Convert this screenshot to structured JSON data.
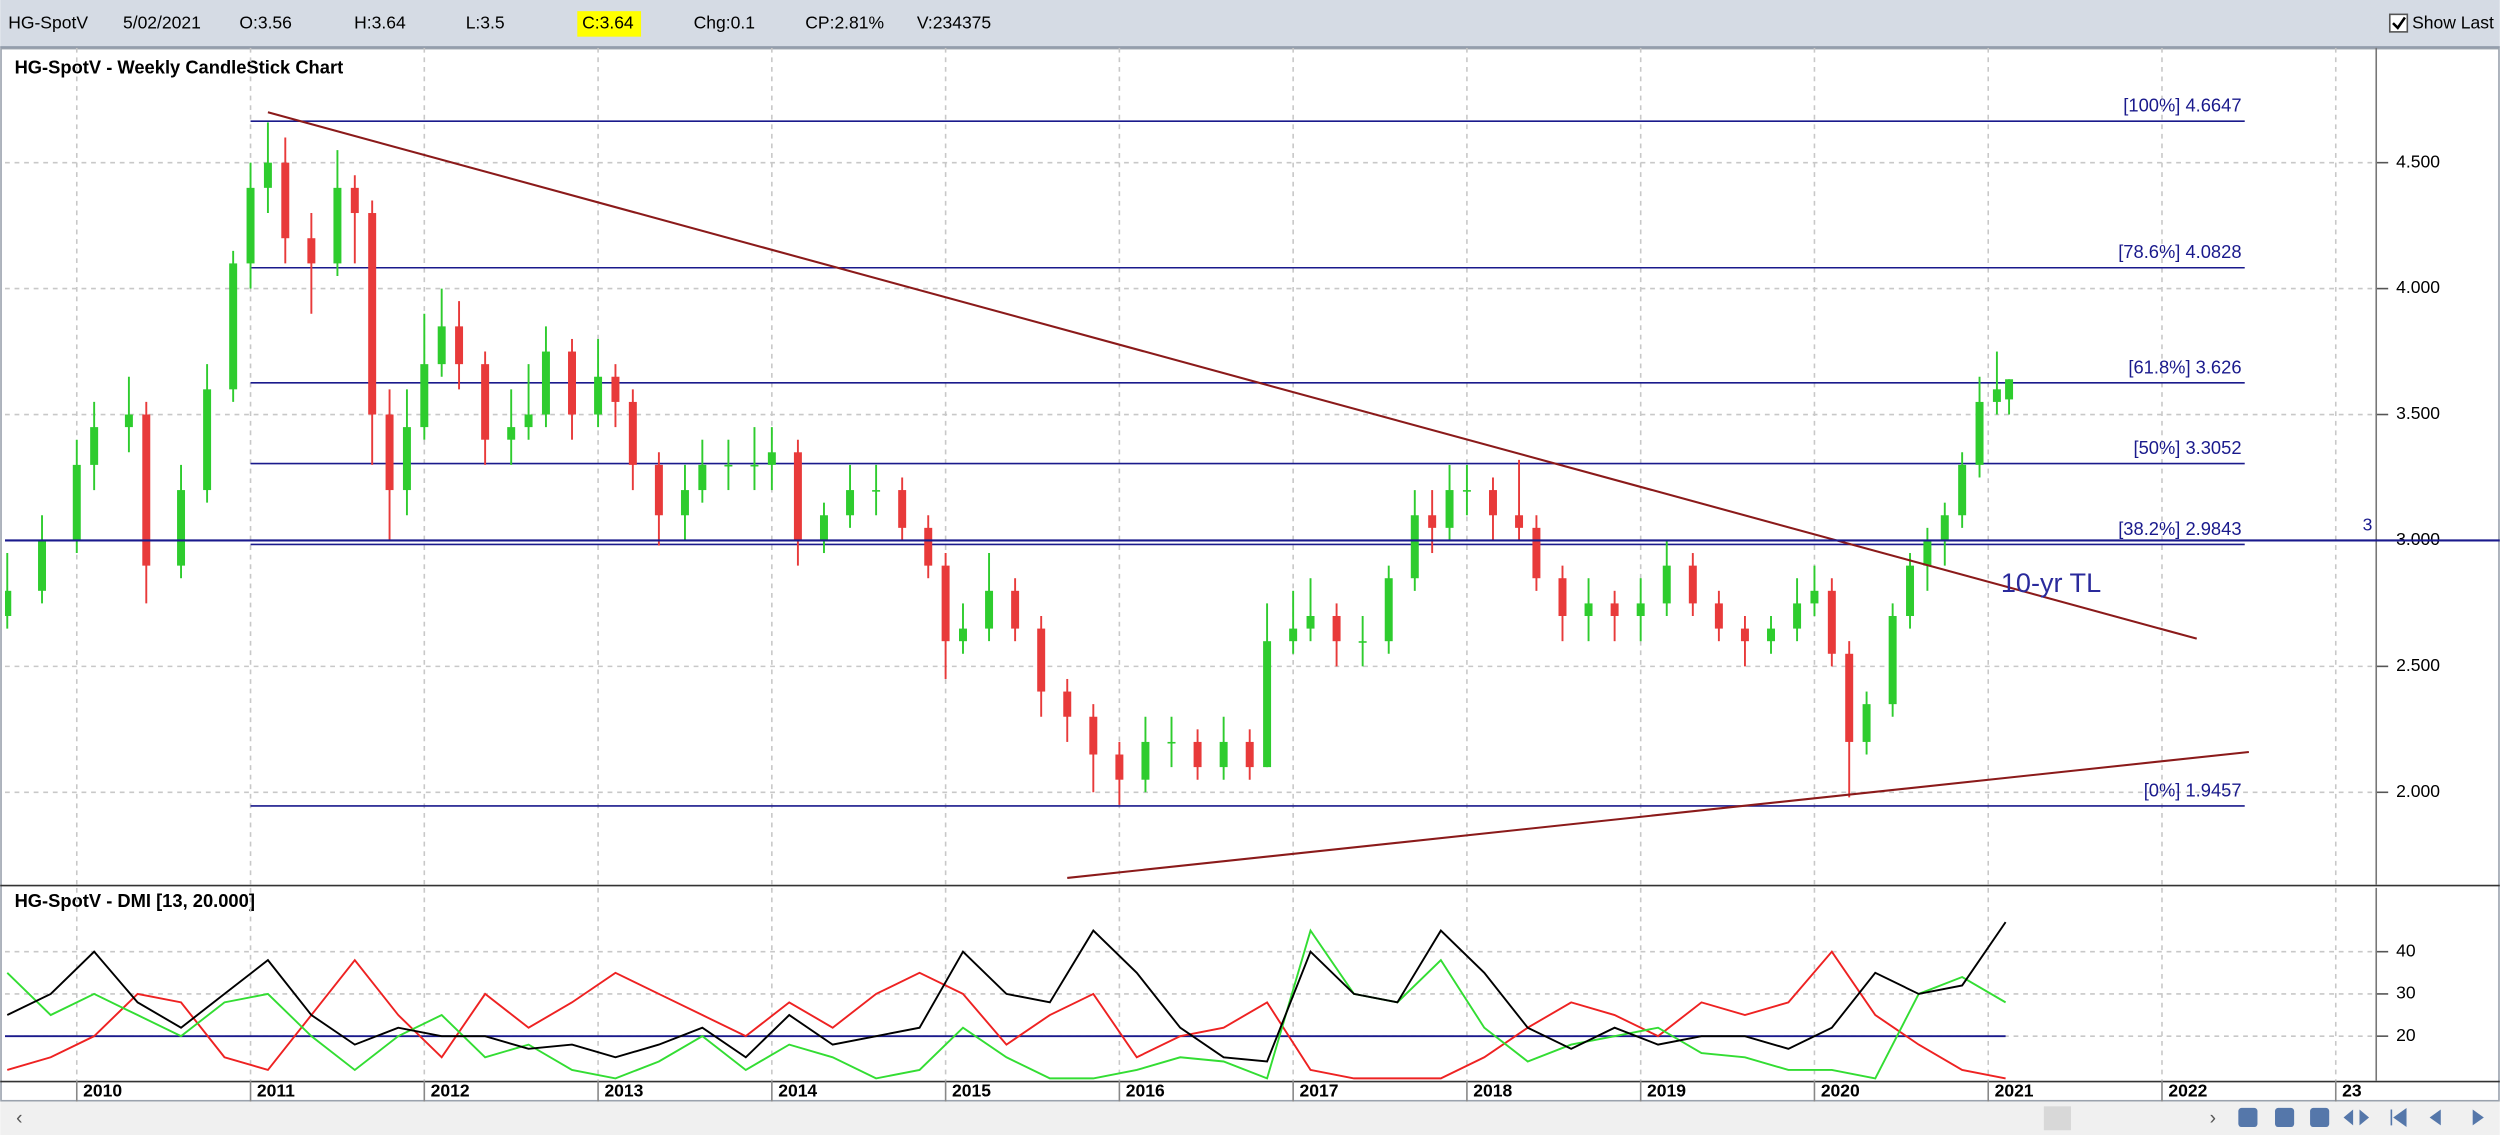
{
  "header": {
    "symbol": "HG-SpotV",
    "date": "5/02/2021",
    "open": "O:3.56",
    "high": "H:3.64",
    "low": "L:3.5",
    "close": "C:3.64",
    "change": "Chg:0.1",
    "change_pct": "CP:2.81%",
    "volume": "V:234375",
    "show_last": "Show Last"
  },
  "chart_data": [
    {
      "type": "candlestick",
      "title": "HG-SpotV - Weekly CandleStick Chart",
      "up_color": "#2ecc2e",
      "down_color": "#e83a3a",
      "x": [
        2009.6,
        2009.8,
        2010.0,
        2010.1,
        2010.3,
        2010.4,
        2010.6,
        2010.75,
        2010.9,
        2011.0,
        2011.1,
        2011.2,
        2011.35,
        2011.5,
        2011.6,
        2011.7,
        2011.8,
        2011.9,
        2012.0,
        2012.1,
        2012.2,
        2012.35,
        2012.5,
        2012.6,
        2012.7,
        2012.85,
        2013.0,
        2013.1,
        2013.2,
        2013.35,
        2013.5,
        2013.6,
        2013.75,
        2013.9,
        2014.0,
        2014.15,
        2014.3,
        2014.45,
        2014.6,
        2014.75,
        2014.9,
        2015.0,
        2015.1,
        2015.25,
        2015.4,
        2015.55,
        2015.7,
        2015.85,
        2016.0,
        2016.15,
        2016.3,
        2016.45,
        2016.6,
        2016.75,
        2016.85,
        2017.0,
        2017.1,
        2017.25,
        2017.4,
        2017.55,
        2017.7,
        2017.8,
        2017.9,
        2018.0,
        2018.15,
        2018.3,
        2018.4,
        2018.55,
        2018.7,
        2018.85,
        2019.0,
        2019.15,
        2019.3,
        2019.45,
        2019.6,
        2019.75,
        2019.9,
        2020.0,
        2020.1,
        2020.2,
        2020.3,
        2020.45,
        2020.55,
        2020.65,
        2020.75,
        2020.85,
        2020.95,
        2021.05,
        2021.12
      ],
      "open": [
        2.7,
        2.8,
        3.0,
        3.3,
        3.45,
        3.5,
        2.9,
        3.2,
        3.6,
        4.1,
        4.4,
        4.5,
        4.2,
        4.1,
        4.4,
        4.3,
        3.5,
        3.2,
        3.45,
        3.7,
        3.85,
        3.7,
        3.4,
        3.45,
        3.5,
        3.75,
        3.5,
        3.65,
        3.55,
        3.3,
        3.1,
        3.2,
        3.3,
        3.3,
        3.3,
        3.35,
        3.0,
        3.1,
        3.2,
        3.2,
        3.05,
        2.9,
        2.6,
        2.65,
        2.8,
        2.65,
        2.4,
        2.3,
        2.15,
        2.05,
        2.2,
        2.2,
        2.1,
        2.2,
        2.1,
        2.6,
        2.65,
        2.7,
        2.6,
        2.6,
        2.85,
        3.1,
        3.05,
        3.2,
        3.2,
        3.1,
        3.05,
        2.85,
        2.7,
        2.75,
        2.7,
        2.75,
        2.9,
        2.75,
        2.65,
        2.6,
        2.65,
        2.75,
        2.8,
        2.55,
        2.2,
        2.35,
        2.7,
        2.9,
        3.0,
        3.1,
        3.3,
        3.55,
        3.56
      ],
      "high": [
        2.95,
        3.1,
        3.4,
        3.55,
        3.65,
        3.55,
        3.3,
        3.7,
        4.15,
        4.5,
        4.66,
        4.6,
        4.3,
        4.55,
        4.45,
        4.35,
        3.6,
        3.6,
        3.9,
        4.0,
        3.95,
        3.75,
        3.6,
        3.7,
        3.85,
        3.8,
        3.8,
        3.7,
        3.6,
        3.35,
        3.3,
        3.4,
        3.4,
        3.45,
        3.45,
        3.4,
        3.15,
        3.3,
        3.3,
        3.25,
        3.1,
        2.95,
        2.75,
        2.95,
        2.85,
        2.7,
        2.45,
        2.35,
        2.2,
        2.3,
        2.3,
        2.25,
        2.3,
        2.25,
        2.75,
        2.8,
        2.85,
        2.75,
        2.7,
        2.9,
        3.2,
        3.2,
        3.3,
        3.3,
        3.25,
        3.32,
        3.1,
        2.9,
        2.85,
        2.8,
        2.85,
        3.0,
        2.95,
        2.8,
        2.7,
        2.7,
        2.85,
        2.9,
        2.85,
        2.6,
        2.4,
        2.75,
        2.95,
        3.05,
        3.15,
        3.35,
        3.65,
        3.75,
        3.64
      ],
      "low": [
        2.65,
        2.75,
        2.95,
        3.2,
        3.35,
        2.75,
        2.85,
        3.15,
        3.55,
        4.0,
        4.3,
        4.1,
        3.9,
        4.05,
        4.1,
        3.3,
        3.0,
        3.1,
        3.4,
        3.65,
        3.6,
        3.3,
        3.3,
        3.4,
        3.45,
        3.4,
        3.45,
        3.45,
        3.2,
        2.98,
        3.0,
        3.15,
        3.2,
        3.2,
        3.2,
        2.9,
        2.95,
        3.05,
        3.1,
        3.0,
        2.85,
        2.45,
        2.55,
        2.6,
        2.6,
        2.3,
        2.2,
        2.0,
        1.95,
        2.0,
        2.1,
        2.05,
        2.05,
        2.05,
        2.1,
        2.55,
        2.6,
        2.5,
        2.5,
        2.55,
        2.8,
        2.95,
        3.0,
        3.1,
        3.0,
        3.0,
        2.8,
        2.6,
        2.6,
        2.6,
        2.6,
        2.7,
        2.7,
        2.6,
        2.5,
        2.55,
        2.6,
        2.7,
        2.5,
        1.98,
        2.15,
        2.3,
        2.65,
        2.8,
        2.9,
        3.05,
        3.25,
        3.5,
        3.5
      ],
      "close": [
        2.8,
        3.0,
        3.3,
        3.45,
        3.5,
        2.9,
        3.2,
        3.6,
        4.1,
        4.4,
        4.5,
        4.2,
        4.1,
        4.4,
        4.3,
        3.5,
        3.2,
        3.45,
        3.7,
        3.85,
        3.7,
        3.4,
        3.45,
        3.5,
        3.75,
        3.5,
        3.65,
        3.55,
        3.3,
        3.1,
        3.2,
        3.3,
        3.3,
        3.3,
        3.35,
        3.0,
        3.1,
        3.2,
        3.2,
        3.05,
        2.9,
        2.6,
        2.65,
        2.8,
        2.65,
        2.4,
        2.3,
        2.15,
        2.05,
        2.2,
        2.2,
        2.1,
        2.2,
        2.1,
        2.6,
        2.65,
        2.7,
        2.6,
        2.6,
        2.85,
        3.1,
        3.05,
        3.2,
        3.2,
        3.1,
        3.05,
        2.85,
        2.7,
        2.75,
        2.7,
        2.75,
        2.9,
        2.75,
        2.65,
        2.6,
        2.65,
        2.75,
        2.8,
        2.55,
        2.2,
        2.35,
        2.7,
        2.9,
        3.0,
        3.1,
        3.3,
        3.55,
        3.6,
        3.64
      ],
      "xlim": [
        2009.587,
        2023.21
      ],
      "xticks": [
        2010,
        2011,
        2012,
        2013,
        2014,
        2015,
        2016,
        2017,
        2018,
        2019,
        2020,
        2021,
        2022,
        {
          "value": 2023,
          "label": "23"
        }
      ],
      "ylim": [
        1.633,
        4.956
      ],
      "yticks": [
        {
          "value": 2,
          "label": "2.000"
        },
        {
          "value": 2.5,
          "label": "2.500"
        },
        {
          "value": 3,
          "label": "3.000"
        },
        {
          "value": 3.5,
          "label": "3.500"
        },
        {
          "value": 4,
          "label": "4.000"
        },
        {
          "value": 4.5,
          "label": "4.500"
        }
      ],
      "grid": true,
      "level_color": "#1a1a8c",
      "levels": [
        {
          "label": "[100%] 4.6647",
          "value": 4.6647
        },
        {
          "label": "[78.6%] 4.0828",
          "value": 4.0828
        },
        {
          "label": "[61.8%] 3.626",
          "value": 3.626
        },
        {
          "label": "[50%] 3.3052",
          "value": 3.3052
        },
        {
          "label": "[38.2%] 2.9843",
          "value": 2.9843
        },
        {
          "label": "[0%] 1.9457",
          "value": 1.9457
        }
      ],
      "reference_line": {
        "value": 3
      },
      "trendline_color": "#8b1a1a",
      "trendlines": [
        {
          "x": [
            2011.1,
            2022.2
          ],
          "y": [
            4.7,
            2.61
          ],
          "label": "10-yr TL"
        },
        {
          "x": [
            2015.7,
            2022.5
          ],
          "y": [
            1.66,
            2.16
          ]
        }
      ]
    },
    {
      "type": "line",
      "title": "HG-SpotV - DMI [13, 20.000]",
      "x": [
        2009.6,
        2009.85,
        2010.1,
        2010.35,
        2010.6,
        2010.85,
        2011.1,
        2011.35,
        2011.6,
        2011.85,
        2012.1,
        2012.35,
        2012.6,
        2012.85,
        2013.1,
        2013.35,
        2013.6,
        2013.85,
        2014.1,
        2014.35,
        2014.6,
        2014.85,
        2015.1,
        2015.35,
        2015.6,
        2015.85,
        2016.1,
        2016.35,
        2016.6,
        2016.85,
        2017.1,
        2017.35,
        2017.6,
        2017.85,
        2018.1,
        2018.35,
        2018.6,
        2018.85,
        2019.1,
        2019.35,
        2019.6,
        2019.85,
        2020.1,
        2020.35,
        2020.6,
        2020.85,
        2021.1
      ],
      "series": [
        {
          "color": "#000000",
          "values": [
            25,
            30,
            40,
            28,
            22,
            30,
            38,
            25,
            18,
            22,
            20,
            20,
            17,
            18,
            15,
            18,
            22,
            15,
            25,
            18,
            20,
            22,
            40,
            30,
            28,
            45,
            35,
            22,
            15,
            14,
            40,
            30,
            28,
            45,
            35,
            22,
            17,
            22,
            18,
            20,
            20,
            17,
            22,
            35,
            30,
            32,
            47
          ]
        },
        {
          "color": "#33dd33",
          "values": [
            35,
            25,
            30,
            25,
            20,
            28,
            30,
            20,
            12,
            20,
            25,
            15,
            18,
            12,
            10,
            14,
            20,
            12,
            18,
            15,
            10,
            12,
            22,
            15,
            10,
            10,
            12,
            15,
            14,
            10,
            45,
            30,
            28,
            38,
            22,
            14,
            18,
            20,
            22,
            16,
            15,
            12,
            12,
            10,
            30,
            34,
            28
          ]
        },
        {
          "color": "#ee2222",
          "values": [
            12,
            15,
            20,
            30,
            28,
            15,
            12,
            25,
            38,
            25,
            15,
            30,
            22,
            28,
            35,
            30,
            25,
            20,
            28,
            22,
            30,
            35,
            30,
            18,
            25,
            30,
            15,
            20,
            22,
            28,
            12,
            10,
            10,
            10,
            15,
            22,
            28,
            25,
            20,
            28,
            25,
            28,
            40,
            25,
            18,
            12,
            10
          ]
        }
      ],
      "reference_line": {
        "value": 20,
        "color": "#1a1a8c"
      },
      "xlim": [
        2009.587,
        2023.21
      ],
      "xticks": [
        2010,
        2011,
        2012,
        2013,
        2014,
        2015,
        2016,
        2017,
        2018,
        2019,
        2020,
        2021,
        2022,
        {
          "value": 2023,
          "label": "23"
        }
      ],
      "ylim": [
        9.43,
        55.1
      ],
      "yticks": [
        20,
        30,
        40
      ],
      "grid": true
    }
  ]
}
